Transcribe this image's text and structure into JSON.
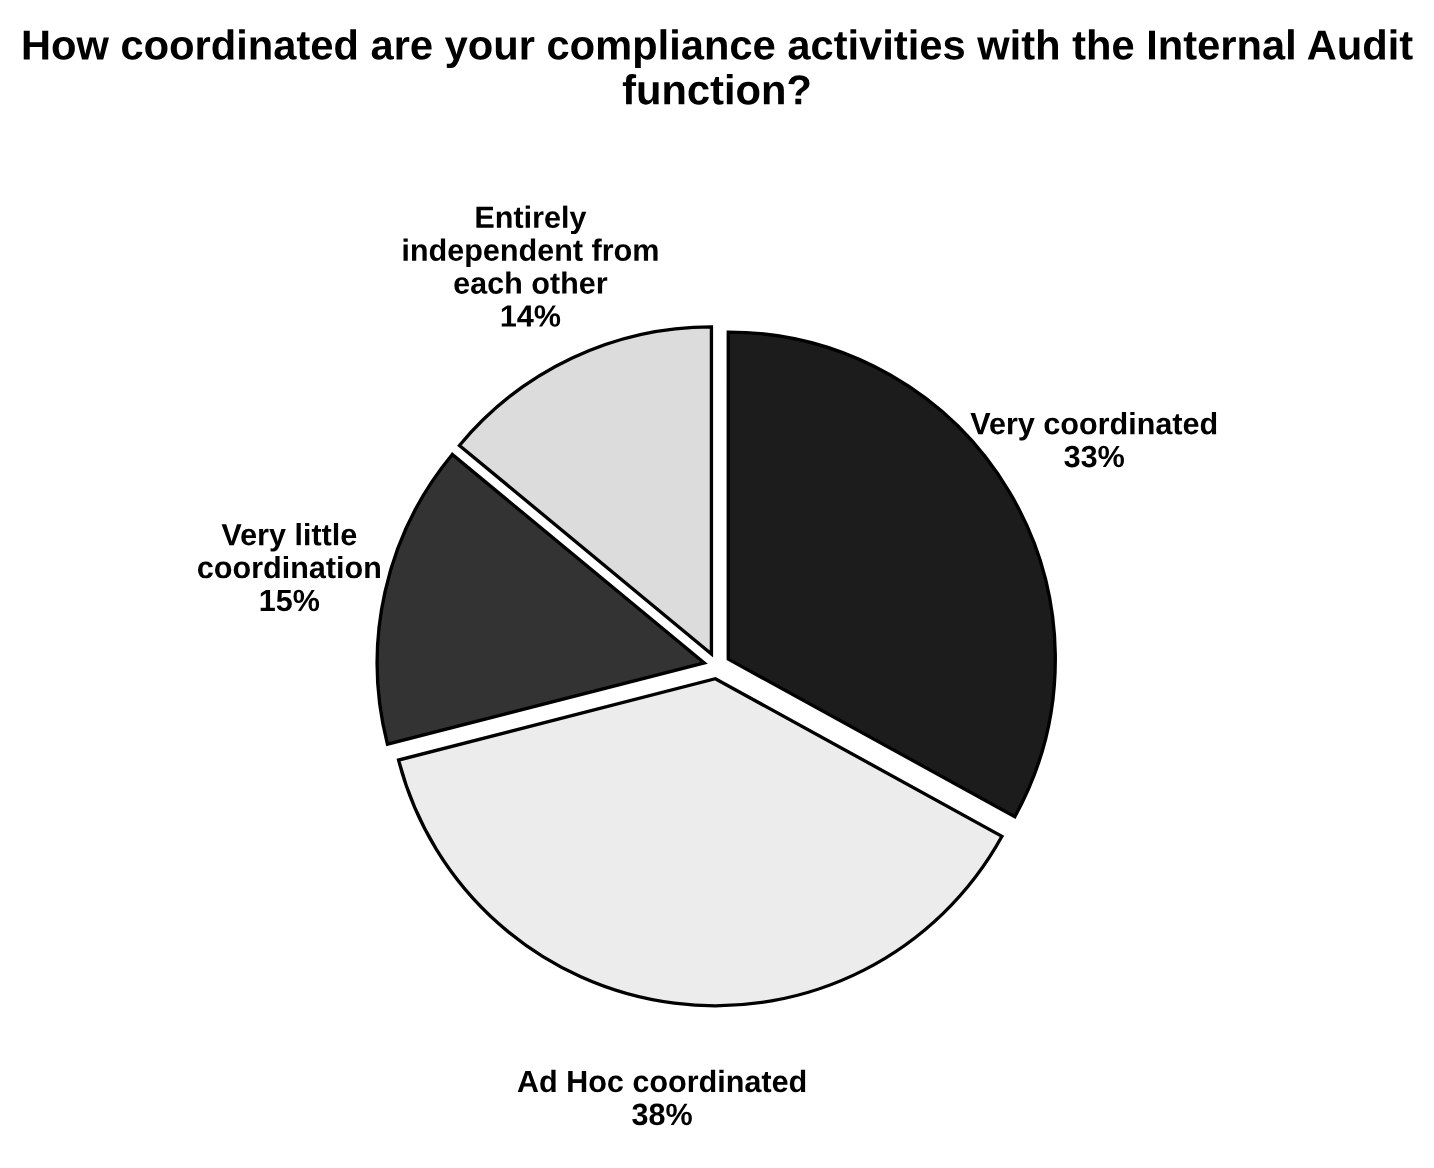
{
  "chart_data": {
    "type": "pie",
    "title": "How coordinated are your compliance activities with the Internal Audit function?",
    "categories": [
      "Very coordinated",
      "Ad Hoc coordinated",
      "Very little\ncoordination",
      "Entirely\nindependent from\neach other"
    ],
    "values": [
      33,
      38,
      15,
      14
    ],
    "value_labels": [
      "33%",
      "38%",
      "15%",
      "14%"
    ],
    "colors": [
      "#1c1c1c",
      "#ececec",
      "#333333",
      "#dcdcdc"
    ]
  }
}
